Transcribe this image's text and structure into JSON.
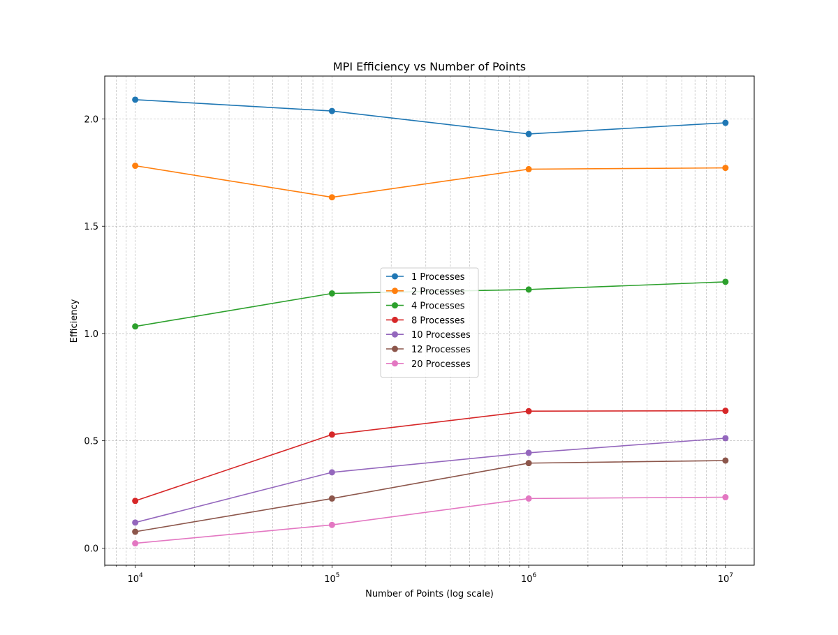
{
  "chart_data": {
    "type": "line",
    "title": "MPI Efficiency vs Number of Points",
    "xlabel": "Number of Points (log scale)",
    "ylabel": "Efficiency",
    "xscale": "log",
    "xlim": [
      7000,
      14000000
    ],
    "ylim": [
      -0.08,
      2.2
    ],
    "x": [
      10000,
      100000,
      1000000,
      10000000
    ],
    "x_tick_labels": [
      {
        "base": "10",
        "exp": "4"
      },
      {
        "base": "10",
        "exp": "5"
      },
      {
        "base": "10",
        "exp": "6"
      },
      {
        "base": "10",
        "exp": "7"
      }
    ],
    "y_ticks": [
      0.0,
      0.5,
      1.0,
      1.5,
      2.0
    ],
    "y_tick_labels": [
      "0.0",
      "0.5",
      "1.0",
      "1.5",
      "2.0"
    ],
    "grid": true,
    "legend_position": "center",
    "series": [
      {
        "name": "1 Processes",
        "color": "#1f77b4",
        "values": [
          2.09,
          2.037,
          1.93,
          1.982
        ]
      },
      {
        "name": "2 Processes",
        "color": "#ff7f0e",
        "values": [
          1.782,
          1.635,
          1.766,
          1.772
        ]
      },
      {
        "name": "4 Processes",
        "color": "#2ca02c",
        "values": [
          1.033,
          1.187,
          1.205,
          1.241
        ]
      },
      {
        "name": "8 Processes",
        "color": "#d62728",
        "values": [
          0.22,
          0.529,
          0.638,
          0.64
        ]
      },
      {
        "name": "10 Processes",
        "color": "#9467bd",
        "values": [
          0.119,
          0.353,
          0.444,
          0.512
        ]
      },
      {
        "name": "12 Processes",
        "color": "#8c564b",
        "values": [
          0.076,
          0.231,
          0.396,
          0.408
        ]
      },
      {
        "name": "20 Processes",
        "color": "#e377c2",
        "values": [
          0.022,
          0.108,
          0.231,
          0.237
        ]
      }
    ]
  }
}
